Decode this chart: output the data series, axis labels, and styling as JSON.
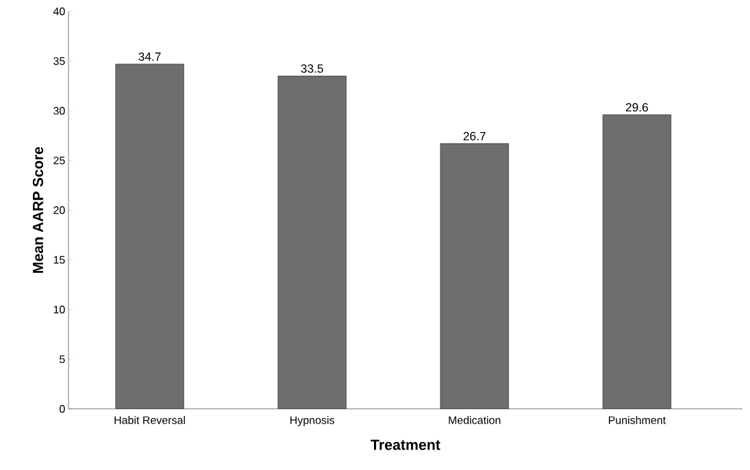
{
  "chart_data": {
    "type": "bar",
    "xlabel": "Treatment",
    "ylabel": "Mean AARP Score",
    "categories": [
      "Habit Reversal",
      "Hypnosis",
      "Medication",
      "Punishment"
    ],
    "values": [
      34.7,
      33.5,
      26.7,
      29.6
    ],
    "color": "#6e6e6e",
    "ylim": [
      0,
      40
    ],
    "yticks": [
      0,
      5,
      10,
      15,
      20,
      25,
      30,
      35,
      40
    ],
    "grid": false,
    "data_labels": true
  }
}
